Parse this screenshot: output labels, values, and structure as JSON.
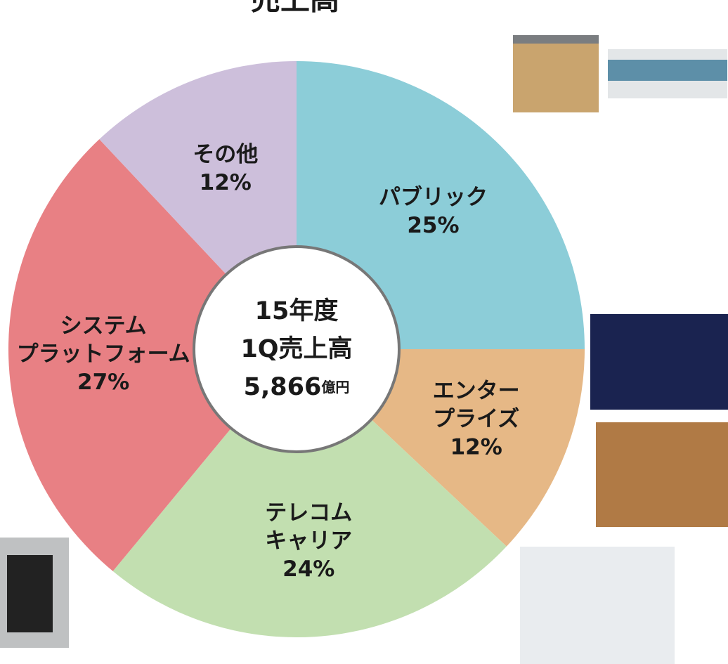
{
  "chart_data": {
    "type": "pie",
    "title": "売上高",
    "center_text": {
      "year": "15年度",
      "metric": "1Q売上高",
      "amount": "5,866",
      "unit": "億円"
    },
    "categories": [
      [
        "パブリック"
      ],
      [
        "エンター",
        "プライズ"
      ],
      [
        "テレコム",
        "キャリア"
      ],
      [
        "システム",
        "プラットフォーム"
      ],
      [
        "その他"
      ]
    ],
    "values": [
      25,
      12,
      24,
      27,
      12
    ],
    "value_labels": [
      "25%",
      "12%",
      "24%",
      "27%",
      "12%"
    ],
    "colors": [
      "#8ccdd8",
      "#e6b886",
      "#c2dfb0",
      "#e88084",
      "#cdbfdb"
    ]
  }
}
